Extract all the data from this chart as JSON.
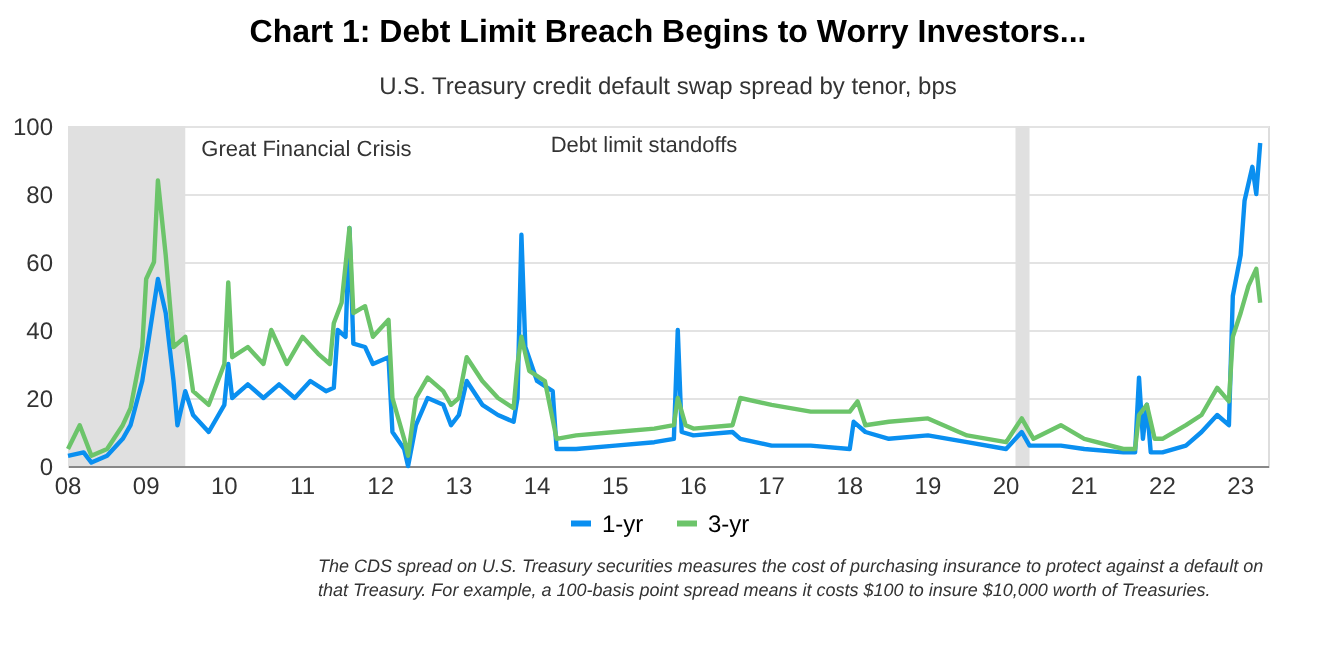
{
  "chart_data": {
    "type": "line",
    "title": "Chart 1: Debt Limit Breach Begins to Worry Investors...",
    "subtitle": "U.S. Treasury credit default swap spread by tenor, bps",
    "xlim": [
      2008,
      2023.35
    ],
    "xticks": [
      {
        "value": 2008,
        "label": "08"
      },
      {
        "value": 2009,
        "label": "09"
      },
      {
        "value": 2010,
        "label": "10"
      },
      {
        "value": 2011,
        "label": "11"
      },
      {
        "value": 2012,
        "label": "12"
      },
      {
        "value": 2013,
        "label": "13"
      },
      {
        "value": 2014,
        "label": "14"
      },
      {
        "value": 2015,
        "label": "15"
      },
      {
        "value": 2016,
        "label": "16"
      },
      {
        "value": 2017,
        "label": "17"
      },
      {
        "value": 2018,
        "label": "18"
      },
      {
        "value": 2019,
        "label": "19"
      },
      {
        "value": 2020,
        "label": "20"
      },
      {
        "value": 2021,
        "label": "21"
      },
      {
        "value": 2022,
        "label": "22"
      },
      {
        "value": 2023,
        "label": "23"
      }
    ],
    "ylim": [
      0,
      100
    ],
    "yticks": [
      0,
      20,
      40,
      60,
      80,
      100
    ],
    "grid": "y",
    "legend": "bottom",
    "bands": [
      {
        "axis": "x",
        "from": 2008,
        "to": 2009.5,
        "label": "Great Financial Crisis",
        "color": "#e0e0e0"
      },
      {
        "axis": "x",
        "from": 2020.12,
        "to": 2020.3,
        "label": null,
        "color": "#e0e0e0"
      }
    ],
    "annotations": [
      "Debt limit standoffs",
      "The CDS spread on U.S. Treasury securities measures the cost of purchasing insurance to protect against a default on that Treasury. For example, a 100-basis point spread means it costs $100 to insure $10,000 worth of Treasuries."
    ],
    "series": [
      {
        "name": "1-yr",
        "color": "#0a8ff0",
        "x": [
          2008.0,
          2008.2,
          2008.3,
          2008.5,
          2008.7,
          2008.8,
          2008.95,
          2009.05,
          2009.15,
          2009.25,
          2009.35,
          2009.4,
          2009.5,
          2009.6,
          2009.8,
          2010.0,
          2010.05,
          2010.1,
          2010.3,
          2010.5,
          2010.7,
          2010.9,
          2011.1,
          2011.3,
          2011.4,
          2011.45,
          2011.55,
          2011.6,
          2011.65,
          2011.8,
          2011.9,
          2012.1,
          2012.15,
          2012.3,
          2012.35,
          2012.45,
          2012.6,
          2012.8,
          2012.9,
          2013.0,
          2013.1,
          2013.3,
          2013.5,
          2013.7,
          2013.75,
          2013.8,
          2013.85,
          2014.0,
          2014.2,
          2014.25,
          2014.5,
          2015.0,
          2015.5,
          2015.75,
          2015.8,
          2015.85,
          2016.0,
          2016.5,
          2016.6,
          2017.0,
          2017.5,
          2018.0,
          2018.05,
          2018.2,
          2018.5,
          2019.0,
          2019.5,
          2020.0,
          2020.2,
          2020.3,
          2020.7,
          2021.0,
          2021.5,
          2021.65,
          2021.7,
          2021.75,
          2021.8,
          2021.85,
          2022.0,
          2022.3,
          2022.5,
          2022.7,
          2022.85,
          2022.9,
          2023.0,
          2023.05,
          2023.15,
          2023.2,
          2023.25
        ],
        "values": [
          3,
          4,
          1,
          3,
          8,
          12,
          25,
          40,
          55,
          45,
          25,
          12,
          22,
          15,
          10,
          18,
          30,
          20,
          24,
          20,
          24,
          20,
          25,
          22,
          23,
          40,
          38,
          70,
          36,
          35,
          30,
          32,
          10,
          5,
          0,
          12,
          20,
          18,
          12,
          15,
          25,
          18,
          15,
          13,
          20,
          68,
          35,
          25,
          22,
          5,
          5,
          6,
          7,
          8,
          40,
          10,
          9,
          10,
          8,
          6,
          6,
          5,
          13,
          10,
          8,
          9,
          7,
          5,
          10,
          6,
          6,
          5,
          4,
          4,
          26,
          8,
          18,
          4,
          4,
          6,
          10,
          15,
          12,
          50,
          62,
          78,
          88,
          80,
          95
        ]
      },
      {
        "name": "3-yr",
        "color": "#6cc46a",
        "x": [
          2008.0,
          2008.15,
          2008.3,
          2008.5,
          2008.7,
          2008.8,
          2008.95,
          2009.0,
          2009.1,
          2009.15,
          2009.25,
          2009.35,
          2009.5,
          2009.6,
          2009.8,
          2010.0,
          2010.05,
          2010.1,
          2010.3,
          2010.5,
          2010.6,
          2010.8,
          2011.0,
          2011.2,
          2011.35,
          2011.4,
          2011.5,
          2011.6,
          2011.65,
          2011.8,
          2011.9,
          2012.1,
          2012.15,
          2012.3,
          2012.35,
          2012.45,
          2012.6,
          2012.8,
          2012.9,
          2013.0,
          2013.1,
          2013.3,
          2013.5,
          2013.7,
          2013.75,
          2013.8,
          2013.9,
          2014.1,
          2014.25,
          2014.5,
          2015.0,
          2015.5,
          2015.75,
          2015.8,
          2015.9,
          2016.0,
          2016.5,
          2016.6,
          2017.0,
          2017.5,
          2018.0,
          2018.1,
          2018.2,
          2018.5,
          2019.0,
          2019.5,
          2020.0,
          2020.2,
          2020.35,
          2020.7,
          2021.0,
          2021.5,
          2021.65,
          2021.7,
          2021.8,
          2021.9,
          2022.0,
          2022.3,
          2022.5,
          2022.7,
          2022.85,
          2022.9,
          2023.0,
          2023.1,
          2023.2,
          2023.25
        ],
        "values": [
          5,
          12,
          3,
          5,
          12,
          17,
          35,
          55,
          60,
          84,
          62,
          35,
          38,
          22,
          18,
          30,
          54,
          32,
          35,
          30,
          40,
          30,
          38,
          33,
          30,
          42,
          48,
          70,
          45,
          47,
          38,
          43,
          20,
          8,
          3,
          20,
          26,
          22,
          18,
          20,
          32,
          25,
          20,
          17,
          30,
          38,
          28,
          25,
          8,
          9,
          10,
          11,
          12,
          20,
          12,
          11,
          12,
          20,
          18,
          16,
          16,
          19,
          12,
          13,
          14,
          9,
          7,
          14,
          8,
          12,
          8,
          5,
          5,
          15,
          18,
          8,
          8,
          12,
          15,
          23,
          19,
          38,
          45,
          53,
          58,
          48
        ]
      }
    ]
  }
}
